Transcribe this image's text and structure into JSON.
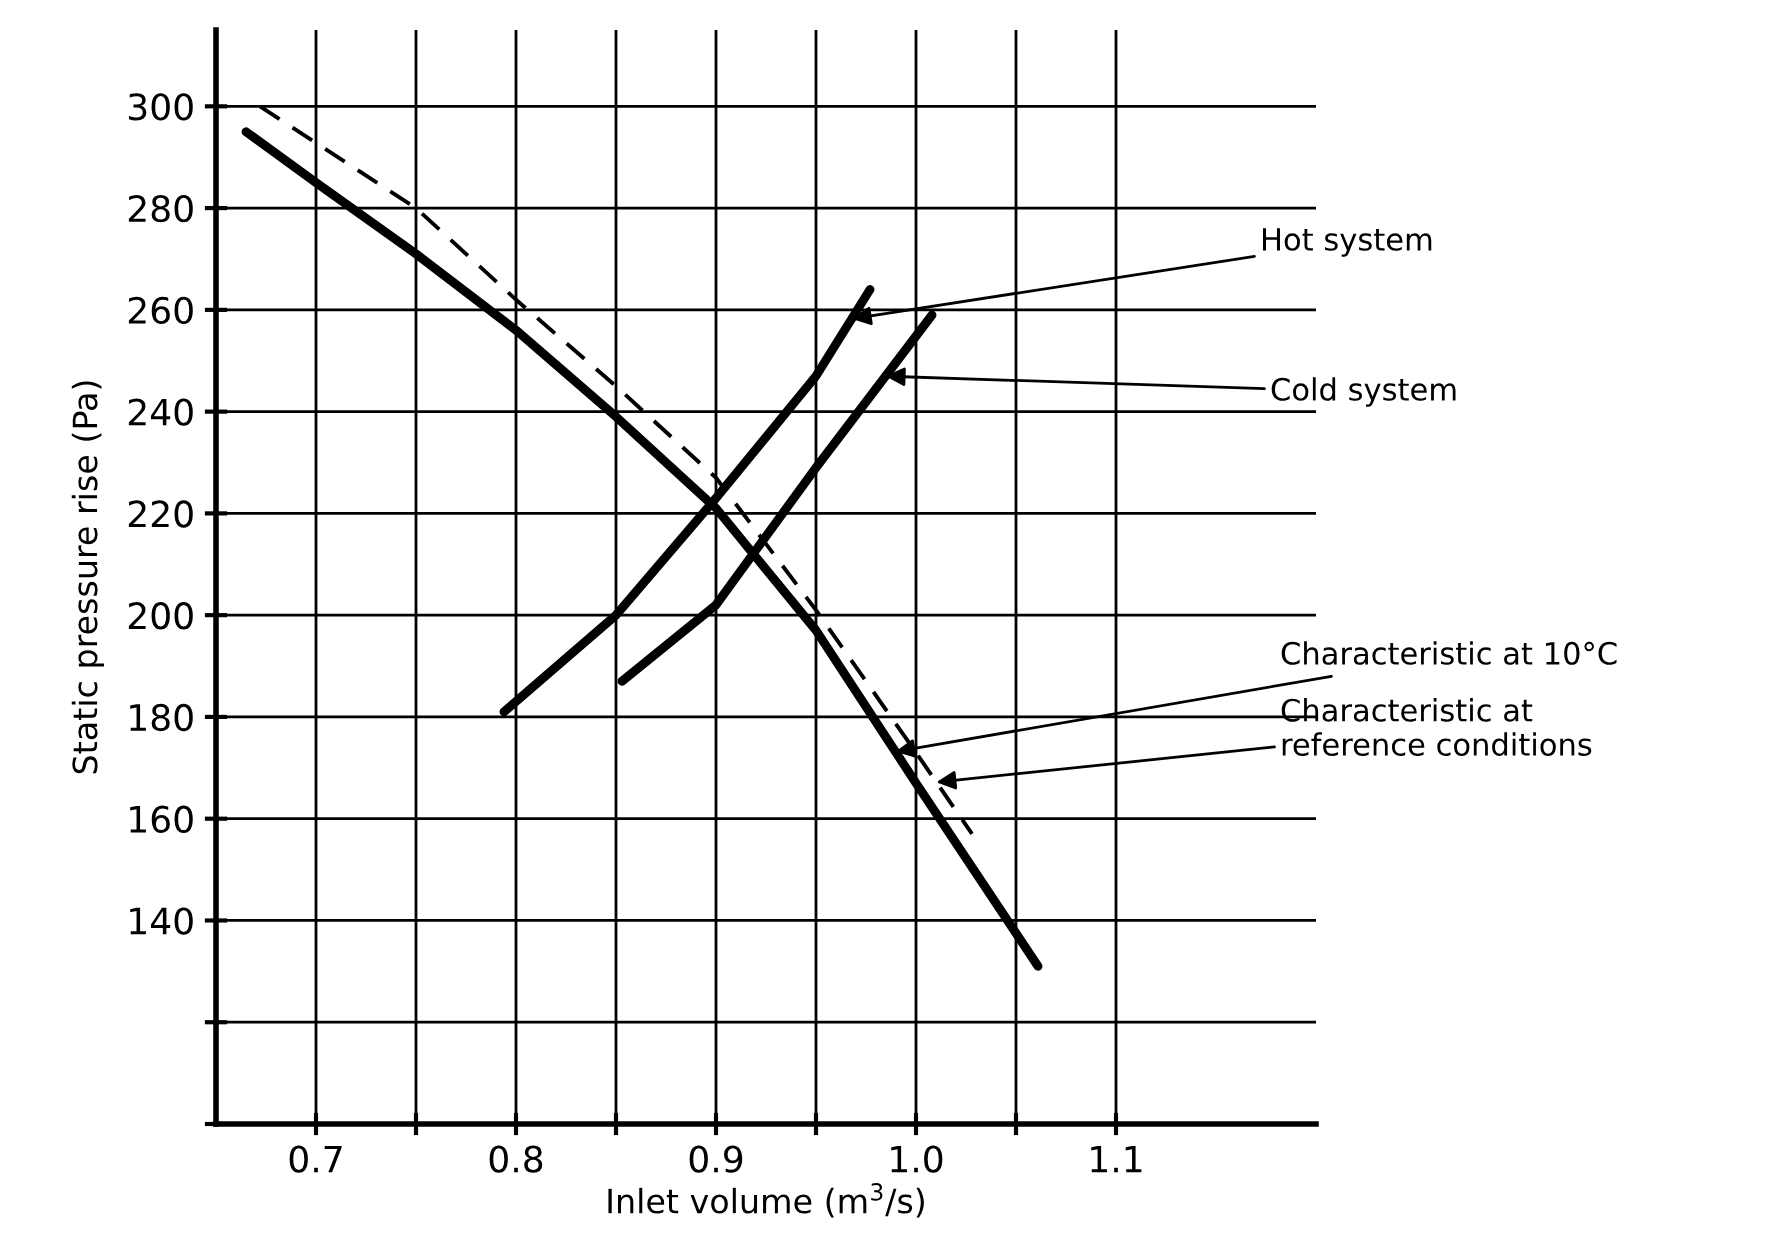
{
  "chart_data": {
    "type": "line",
    "xlabel": "Inlet volume (m$^{3}$/s)",
    "ylabel": "Static pressure rise (Pa)",
    "xlim": [
      0.65,
      1.2
    ],
    "ylim": [
      100,
      315
    ],
    "xticks": [
      0.7,
      {
        "value": 0.75,
        "label": null
      },
      0.8,
      {
        "value": 0.85,
        "label": null
      },
      0.9,
      {
        "value": 0.95,
        "label": null
      },
      {
        "value": 1.0,
        "label": "1.0"
      },
      {
        "value": 1.05,
        "label": null
      },
      1.1
    ],
    "yticks": [
      {
        "value": 100,
        "label": null
      },
      {
        "value": 120,
        "label": null
      },
      140,
      160,
      180,
      200,
      220,
      240,
      260,
      280,
      300
    ],
    "grid": true,
    "legend": false,
    "marker": "none",
    "series": [
      {
        "name": "Characteristic at 10°C",
        "color": "#000000",
        "line_style": "solid",
        "x": [
          0.665,
          0.7,
          0.75,
          0.8,
          0.85,
          0.9,
          0.95,
          1.0,
          1.061
        ],
        "values": [
          295,
          285,
          271,
          256,
          239,
          221,
          197,
          167,
          131
        ]
      },
      {
        "name": "Characteristic at\nreference conditions",
        "color": "#000000",
        "line_style": "dashed",
        "x": [
          0.672,
          0.75,
          0.8,
          0.85,
          0.9,
          0.95,
          1.0,
          1.028
        ],
        "values": [
          300,
          280,
          262,
          245,
          227,
          201,
          173,
          157
        ]
      },
      {
        "name": "Hot system",
        "color": "#000000",
        "line_style": "solid",
        "x": [
          0.794,
          0.85,
          0.9,
          0.95,
          0.977
        ],
        "values": [
          181,
          200,
          223,
          247,
          264
        ]
      },
      {
        "name": "Cold system",
        "color": "#000000",
        "line_style": "solid",
        "x": [
          0.853,
          0.9,
          0.95,
          1.008
        ],
        "values": [
          187,
          202,
          229,
          259
        ]
      }
    ]
  }
}
